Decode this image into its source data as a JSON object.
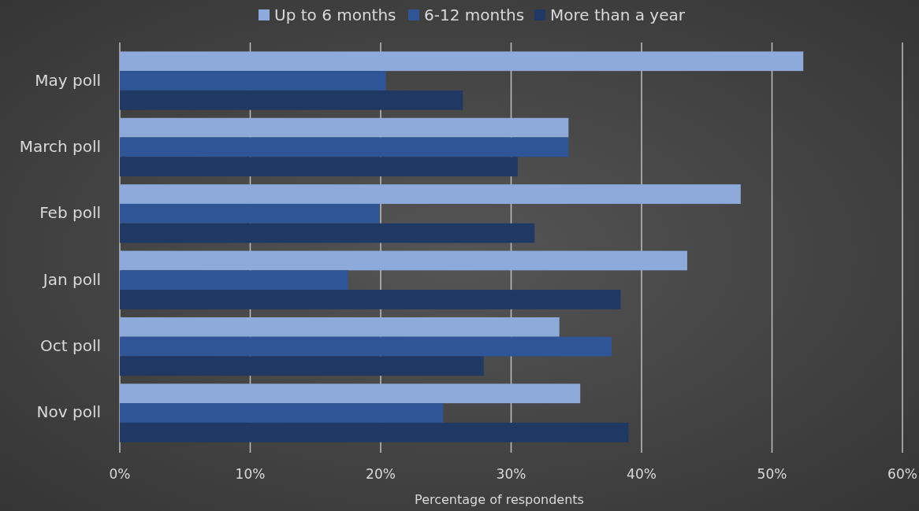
{
  "chart_data": {
    "type": "bar",
    "orientation": "horizontal",
    "xlabel": "Percentage of respondents",
    "categories": [
      "May poll",
      "March poll",
      "Feb poll",
      "Jan poll",
      "Oct poll",
      "Nov poll"
    ],
    "series": [
      {
        "name": "Up to 6 months",
        "color": "#8eaadb",
        "values": [
          52.4,
          34.4,
          47.6,
          43.5,
          33.7,
          35.3
        ]
      },
      {
        "name": "6-12 months",
        "color": "#2f5597",
        "values": [
          20.4,
          34.4,
          19.9,
          17.5,
          37.7,
          24.8
        ]
      },
      {
        "name": "More than a year",
        "color": "#1f3864",
        "values": [
          26.3,
          30.5,
          31.8,
          38.4,
          27.9,
          39.0
        ]
      }
    ],
    "xlim": [
      0,
      60
    ],
    "xticks": [
      {
        "value": 0,
        "label": "0%"
      },
      {
        "value": 10,
        "label": "10%"
      },
      {
        "value": 20,
        "label": "20%"
      },
      {
        "value": 30,
        "label": "30%"
      },
      {
        "value": 40,
        "label": "40%"
      },
      {
        "value": 50,
        "label": "50%"
      },
      {
        "value": 60,
        "label": "60%"
      }
    ],
    "grid": "x",
    "legend": "top"
  }
}
